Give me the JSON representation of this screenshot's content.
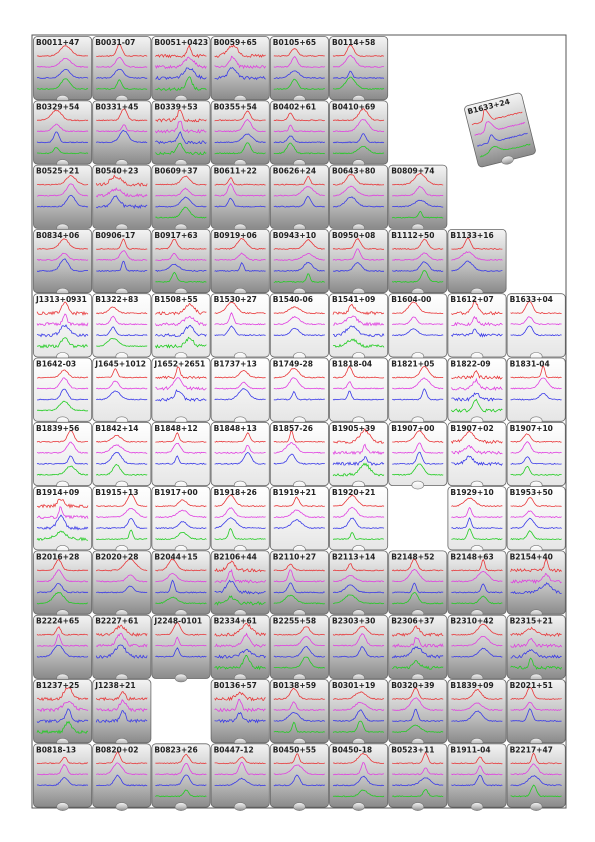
{
  "rows": [
    [
      "B0011+47",
      "B0031-07",
      "B0051+0423",
      "B0059+65",
      "B0105+65",
      "B0114+58"
    ],
    [
      "B0329+54",
      "B0331+45",
      "B0339+53",
      "B0355+54",
      "B0402+61",
      "B0410+69"
    ],
    [
      "B0525+21",
      "B0540+23",
      "B0609+37",
      "B0611+22",
      "B0626+24",
      "B0643+80",
      "B0809+74"
    ],
    [
      "B0834+06",
      "B0906-17",
      "B0917+63",
      "B0919+06",
      "B0943+10",
      "B0950+08",
      "B1112+50",
      "B1133+16"
    ],
    [
      "J1313+0931",
      "B1322+83",
      "B1508+55",
      "B1530+27",
      "B1540-06",
      "B1541+09",
      "B1604-00",
      "B1612+07",
      "B1633+04"
    ],
    [
      "B1642-03",
      "J1645+1012",
      "J1652+2651",
      "B1737+13",
      "B1749-28",
      "B1818-04",
      "B1821+05",
      "B1822-09",
      "B1831-04"
    ],
    [
      "B1839+56",
      "B1842+14",
      "B1848+12",
      "B1848+13",
      "B1857-26",
      "B1905+39",
      "B1907+00",
      "B1907+02",
      "B1907+10"
    ],
    [
      "B1914+09",
      "B1915+13",
      "B1917+00",
      "B1918+26",
      "B1919+21",
      "B1920+21",
      null,
      "B1929+10",
      "B1953+50"
    ],
    [
      "B2016+28",
      "B2020+28",
      "B2044+15",
      "B2106+44",
      "B2110+27",
      "B2113+14",
      "B2148+52",
      "B2148+63",
      "B2154+40"
    ],
    [
      "B2224+65",
      "B2227+61",
      "J2248-0101",
      "B2334+61",
      "B2255+58",
      "B2303+30",
      "B2306+37",
      "B2310+42",
      "B2315+21"
    ],
    [
      "B1237+25",
      "J1238+21",
      null,
      "B0136+57",
      "B0138+59",
      "B0301+19",
      "B0320+39",
      "B1839+09",
      "B2021+51"
    ],
    [
      "B0818-13",
      "B0820+02",
      "B0823+26",
      "B0447-12",
      "B0450+55",
      "B0450-18",
      "B0523+11",
      "B1911-04",
      "B2217+47"
    ]
  ],
  "loose_piece": "B1633+24"
}
